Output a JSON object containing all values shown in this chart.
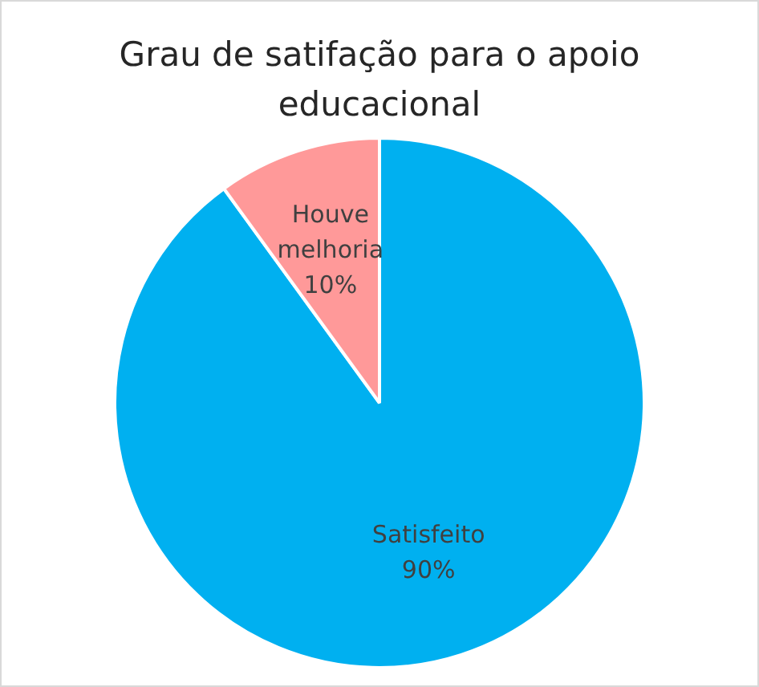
{
  "chart_data": {
    "type": "pie",
    "title": "Grau de satifação para o apoio educacional",
    "categories": [
      "Satisfeito",
      "Houve melhoria"
    ],
    "values": [
      90,
      10
    ],
    "colors": [
      "#00b0f0",
      "#ff9999"
    ],
    "value_labels": [
      "90%",
      "10%"
    ],
    "legend": false
  }
}
